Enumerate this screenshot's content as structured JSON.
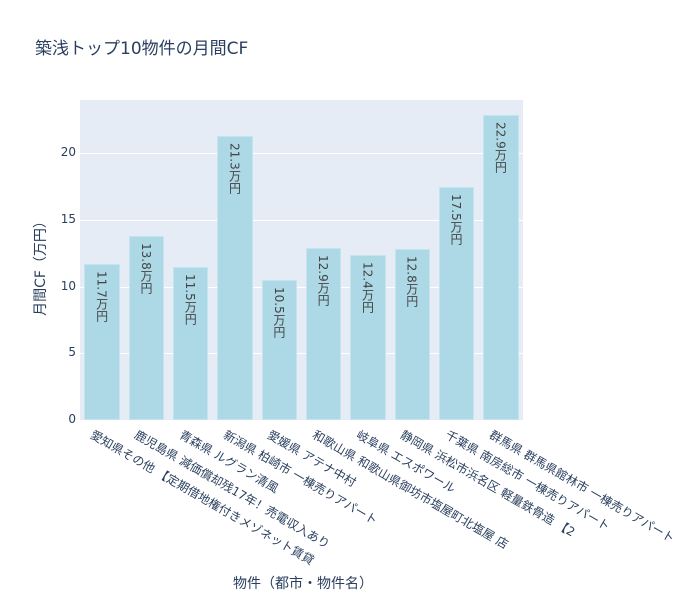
{
  "chart_data": {
    "type": "bar",
    "title": "築浅トップ10物件の月間CF",
    "xlabel": "物件（都市・物件名）",
    "ylabel": "月間CF（万円）",
    "ylim": [
      0,
      24
    ],
    "yticks": [
      0,
      5,
      10,
      15,
      20
    ],
    "grid": true,
    "legend": null,
    "bar_color": "#add8e6",
    "plot_bg": "#e5ecf6",
    "categories": [
      "愛知県その他 【定期借地権付きメゾネット賃貸",
      "鹿児島県 減価償却残17年！売電収入あり",
      "青森県 ルグラン清風",
      "新潟県 柏崎市 一棟売りアパート",
      "愛媛県 アテナ中村",
      "和歌山県 和歌山県御坊市塩屋町北塩屋 店",
      "岐阜県 エスポワール",
      "静岡県 浜松市浜名区 軽量鉄骨造 【2",
      "千葉県 南房総市 一棟売りアパート",
      "群馬県 群馬県館林市 一棟売りアパート"
    ],
    "values": [
      11.7,
      13.8,
      11.5,
      21.3,
      10.5,
      12.9,
      12.4,
      12.8,
      17.5,
      22.9
    ],
    "text_labels": [
      "11.7万円",
      "13.8万円",
      "11.5万円",
      "21.3万円",
      "10.5万円",
      "12.9万円",
      "12.4万円",
      "12.8万円",
      "17.5万円",
      "22.9万円"
    ]
  }
}
